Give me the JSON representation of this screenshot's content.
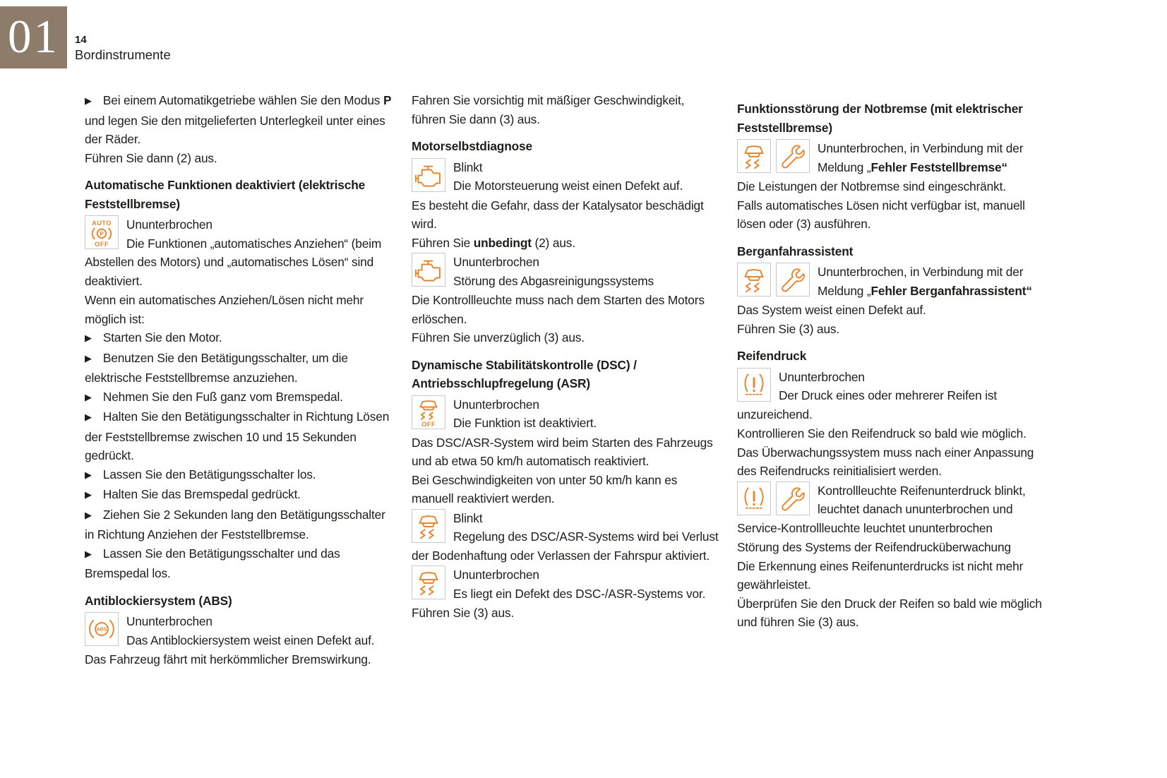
{
  "page": {
    "chapter": "01",
    "page_number": "14",
    "section_title": "Bordinstrumente",
    "bullet_glyph": "▶"
  },
  "colors": {
    "accent_orange": "#E5862F",
    "chapter_badge_bg": "#8D7C6A",
    "text_color": "#1D1D1B",
    "icon_box_border": "#C9C9C9"
  },
  "columns": [
    {
      "blocks": [
        {
          "type": "para",
          "bullet": true,
          "text": [
            {
              "t": "Bei einem Automatikgetriebe wählen Sie den Modus "
            },
            {
              "t": "P",
              "b": true
            },
            {
              "t": " und legen Sie den mitgelieferten Unterlegkeil unter eines der Räder."
            }
          ]
        },
        {
          "type": "para",
          "text": "Führen Sie dann (2) aus."
        },
        {
          "type": "heading",
          "text": "Automatische Funktionen deaktiviert (elektrische Feststellbremse)"
        },
        {
          "type": "icon-text",
          "icons": [
            "auto-parking-brake-off-icon"
          ],
          "lines": [
            "Ununterbrochen",
            "Die Funktionen „automatisches Anziehen“ (beim Abstellen des Motors) und „automatisches Lösen“ sind deaktiviert."
          ]
        },
        {
          "type": "para",
          "text": "Wenn ein automatisches Anziehen/Lösen nicht mehr möglich ist:"
        },
        {
          "type": "para",
          "bullet": true,
          "text": "Starten Sie den Motor."
        },
        {
          "type": "para",
          "bullet": true,
          "text": "Benutzen Sie den Betätigungsschalter, um die elektrische Feststellbremse anzuziehen."
        },
        {
          "type": "para",
          "bullet": true,
          "text": "Nehmen Sie den Fuß ganz vom Bremspedal."
        },
        {
          "type": "para",
          "bullet": true,
          "text": "Halten Sie den Betätigungsschalter in Richtung Lösen der Feststellbremse zwischen 10 und 15 Sekunden gedrückt."
        },
        {
          "type": "para",
          "bullet": true,
          "text": "Lassen Sie den Betätigungsschalter los."
        },
        {
          "type": "para",
          "bullet": true,
          "text": "Halten Sie das Bremspedal gedrückt."
        },
        {
          "type": "para",
          "bullet": true,
          "text": "Ziehen Sie 2 Sekunden lang den Betätigungsschalter in Richtung Anziehen der Feststellbremse."
        },
        {
          "type": "para",
          "bullet": true,
          "text": "Lassen Sie den Betätigungsschalter und das Bremspedal los."
        },
        {
          "type": "heading",
          "text": "Antiblockiersystem (ABS)"
        },
        {
          "type": "icon-text",
          "icons": [
            "abs-icon"
          ],
          "lines": [
            "Ununterbrochen",
            "Das Antiblockiersystem weist einen Defekt auf."
          ]
        },
        {
          "type": "para",
          "text": "Das Fahrzeug fährt mit herkömmlicher Bremswirkung."
        }
      ]
    },
    {
      "blocks": [
        {
          "type": "para",
          "text": "Fahren Sie vorsichtig mit mäßiger Geschwindigkeit, führen Sie dann (3) aus."
        },
        {
          "type": "heading",
          "text": "Motorselbstdiagnose"
        },
        {
          "type": "icon-text",
          "icons": [
            "engine-icon"
          ],
          "lines": [
            "Blinkt",
            "Die Motorsteuerung weist einen Defekt auf."
          ]
        },
        {
          "type": "para",
          "text": "Es besteht die Gefahr, dass der Katalysator beschädigt wird."
        },
        {
          "type": "para",
          "text": [
            {
              "t": "Führen Sie "
            },
            {
              "t": "unbedingt",
              "b": true
            },
            {
              "t": " (2) aus."
            }
          ]
        },
        {
          "type": "icon-text",
          "icons": [
            "engine-icon"
          ],
          "lines": [
            "Ununterbrochen",
            "Störung des Abgasreinigungssystems"
          ]
        },
        {
          "type": "para",
          "text": "Die Kontrollleuchte muss nach dem Starten des Motors erlöschen."
        },
        {
          "type": "para",
          "text": "Führen Sie unverzüglich (3) aus."
        },
        {
          "type": "heading",
          "text": "Dynamische Stabilitätskontrolle (DSC) / Antriebsschlupfregelung (ASR)"
        },
        {
          "type": "icon-text",
          "icons": [
            "dsc-off-icon"
          ],
          "lines": [
            "Ununterbrochen",
            "Die Funktion ist deaktiviert."
          ]
        },
        {
          "type": "para",
          "text": "Das DSC/ASR-System wird beim Starten des Fahrzeugs und ab etwa 50 km/h automatisch reaktiviert."
        },
        {
          "type": "para",
          "text": "Bei Geschwindigkeiten von unter 50 km/h kann es manuell reaktiviert werden."
        },
        {
          "type": "icon-text",
          "icons": [
            "dsc-icon"
          ],
          "lines": [
            "Blinkt",
            "Regelung des DSC/ASR-Systems wird bei Verlust der Bodenhaftung oder Verlassen der Fahrspur aktiviert."
          ]
        },
        {
          "type": "icon-text",
          "icons": [
            "dsc-icon"
          ],
          "lines": [
            "Ununterbrochen",
            "Es liegt ein Defekt des DSC-/ASR-Systems vor."
          ]
        },
        {
          "type": "para",
          "text": "Führen Sie (3) aus."
        }
      ]
    },
    {
      "blocks": [
        {
          "type": "heading",
          "text": "Funktionsstörung der Notbremse (mit elektrischer Feststellbremse)"
        },
        {
          "type": "icon-text",
          "icons": [
            "dsc-icon",
            "wrench-icon"
          ],
          "lines": [
            [
              {
                "t": "Ununterbrochen, in Verbindung mit der Meldung „"
              },
              {
                "t": "Fehler Feststellbremse“",
                "b": true
              }
            ]
          ]
        },
        {
          "type": "para",
          "text": "Die Leistungen der Notbremse sind eingeschränkt."
        },
        {
          "type": "para",
          "text": "Falls automatisches Lösen nicht verfügbar ist, manuell lösen oder (3) ausführen."
        },
        {
          "type": "heading",
          "text": "Berganfahrassistent"
        },
        {
          "type": "icon-text",
          "icons": [
            "dsc-icon",
            "wrench-icon"
          ],
          "lines": [
            [
              {
                "t": "Ununterbrochen, in Verbindung mit der Meldung „"
              },
              {
                "t": "Fehler Berganfahrassistent“",
                "b": true
              }
            ]
          ]
        },
        {
          "type": "para",
          "text": "Das System weist einen Defekt auf."
        },
        {
          "type": "para",
          "text": "Führen Sie (3) aus."
        },
        {
          "type": "heading",
          "text": "Reifendruck"
        },
        {
          "type": "icon-text",
          "icons": [
            "tire-pressure-icon"
          ],
          "lines": [
            "Ununterbrochen",
            "Der Druck eines oder mehrerer Reifen ist unzureichend."
          ]
        },
        {
          "type": "para",
          "text": "Kontrollieren Sie den Reifendruck so bald wie möglich."
        },
        {
          "type": "para",
          "text": "Das Überwachungssystem muss nach einer Anpassung des Reifendrucks reinitialisiert werden."
        },
        {
          "type": "icon-text",
          "icons": [
            "tire-pressure-icon",
            "wrench-icon"
          ],
          "lines": [
            "Kontrollleuchte Reifenunterdruck blinkt, leuchtet danach ununterbrochen und Service-Kontrollleuchte leuchtet ununterbrochen"
          ]
        },
        {
          "type": "para",
          "text": "Störung des Systems der Reifendrucküberwachung"
        },
        {
          "type": "para",
          "text": "Die Erkennung eines Reifenunterdrucks ist nicht mehr gewährleistet."
        },
        {
          "type": "para",
          "text": "Überprüfen Sie den Druck der Reifen so bald wie möglich und führen Sie (3) aus."
        }
      ]
    }
  ]
}
